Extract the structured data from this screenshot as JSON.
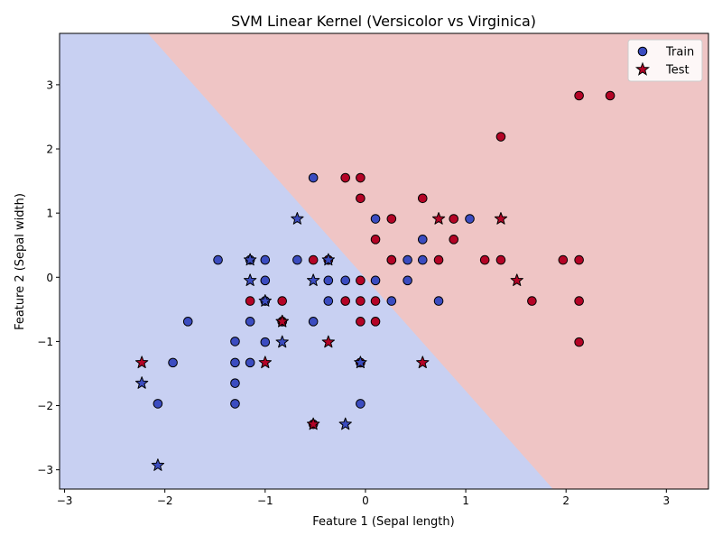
{
  "colors": {
    "region_class0": "#c8d0f2",
    "region_class1": "#efc5c5",
    "class0": "#3b4cc0",
    "class1": "#b40426",
    "edge": "#000000"
  },
  "chart_data": {
    "type": "scatter",
    "title": "SVM Linear Kernel (Versicolor vs Virginica)",
    "xlabel": "Feature 1 (Sepal length)",
    "ylabel": "Feature 2 (Sepal width)",
    "xlim": [
      -3.05,
      3.42
    ],
    "ylim": [
      -3.3,
      3.8
    ],
    "xticks": [
      -3,
      -2,
      -1,
      0,
      1,
      2,
      3
    ],
    "yticks": [
      -3,
      -2,
      -1,
      0,
      1,
      2,
      3
    ],
    "grid": false,
    "legend": {
      "placement": "top-right",
      "entries": [
        "Train",
        "Test"
      ]
    },
    "decision_boundary": {
      "from": [
        -2.17,
        3.8
      ],
      "to": [
        1.87,
        -3.3
      ]
    },
    "series": [
      {
        "name": "Train",
        "marker": "circle",
        "points": [
          [
            -2.07,
            -1.97,
            0
          ],
          [
            -1.92,
            -1.33,
            0
          ],
          [
            -1.77,
            -0.69,
            0
          ],
          [
            -1.47,
            0.27,
            0
          ],
          [
            -1.3,
            -1.0,
            0
          ],
          [
            -1.3,
            -1.33,
            0
          ],
          [
            -1.3,
            -1.65,
            0
          ],
          [
            -1.3,
            -1.97,
            0
          ],
          [
            -1.15,
            -0.69,
            0
          ],
          [
            -1.15,
            -1.33,
            0
          ],
          [
            -1.15,
            0.27,
            0
          ],
          [
            -1.0,
            0.27,
            0
          ],
          [
            -1.0,
            -0.05,
            0
          ],
          [
            -1.0,
            -0.37,
            0
          ],
          [
            -1.0,
            -1.01,
            0
          ],
          [
            -0.83,
            -0.69,
            0
          ],
          [
            -0.68,
            0.27,
            0
          ],
          [
            -0.52,
            1.55,
            0
          ],
          [
            -0.52,
            -0.69,
            0
          ],
          [
            -0.37,
            -0.05,
            0
          ],
          [
            -0.37,
            -0.37,
            0
          ],
          [
            -0.37,
            0.27,
            0
          ],
          [
            -0.2,
            -0.05,
            0
          ],
          [
            -0.05,
            -1.33,
            0
          ],
          [
            -0.05,
            -1.97,
            0
          ],
          [
            0.1,
            0.91,
            0
          ],
          [
            0.1,
            -0.05,
            0
          ],
          [
            0.26,
            -0.37,
            0
          ],
          [
            0.42,
            0.27,
            0
          ],
          [
            0.42,
            -0.05,
            0
          ],
          [
            0.57,
            0.59,
            0
          ],
          [
            0.57,
            0.27,
            0
          ],
          [
            0.73,
            -0.37,
            0
          ],
          [
            1.04,
            0.91,
            0
          ],
          [
            -1.15,
            -0.37,
            1
          ],
          [
            -0.83,
            -0.37,
            1
          ],
          [
            -0.52,
            0.27,
            1
          ],
          [
            -0.2,
            1.55,
            1
          ],
          [
            -0.05,
            1.55,
            1
          ],
          [
            -0.05,
            1.23,
            1
          ],
          [
            -0.2,
            -0.37,
            1
          ],
          [
            -0.05,
            -0.05,
            1
          ],
          [
            -0.05,
            -0.37,
            1
          ],
          [
            -0.05,
            -0.69,
            1
          ],
          [
            0.1,
            0.59,
            1
          ],
          [
            0.1,
            -0.37,
            1
          ],
          [
            0.1,
            -0.69,
            1
          ],
          [
            0.26,
            0.91,
            1
          ],
          [
            0.26,
            0.27,
            1
          ],
          [
            0.57,
            1.23,
            1
          ],
          [
            0.73,
            0.27,
            1
          ],
          [
            0.88,
            0.91,
            1
          ],
          [
            0.88,
            0.59,
            1
          ],
          [
            1.19,
            0.27,
            1
          ],
          [
            1.35,
            2.19,
            1
          ],
          [
            1.35,
            0.27,
            1
          ],
          [
            1.66,
            -0.37,
            1
          ],
          [
            1.97,
            0.27,
            1
          ],
          [
            2.13,
            2.83,
            1
          ],
          [
            2.13,
            0.27,
            1
          ],
          [
            2.13,
            -0.37,
            1
          ],
          [
            2.13,
            -1.01,
            1
          ],
          [
            2.44,
            2.83,
            1
          ],
          [
            -0.52,
            -2.29,
            1
          ],
          [
            -0.37,
            0.27,
            1
          ],
          [
            -0.83,
            -0.69,
            1
          ],
          [
            -0.05,
            -1.33,
            1
          ],
          [
            0.26,
            0.27,
            1
          ]
        ]
      },
      {
        "name": "Test",
        "marker": "star",
        "points": [
          [
            -2.23,
            -1.65,
            0
          ],
          [
            -2.07,
            -2.93,
            0
          ],
          [
            -1.15,
            0.27,
            0
          ],
          [
            -1.15,
            -0.05,
            0
          ],
          [
            -1.0,
            -0.37,
            0
          ],
          [
            -0.83,
            -0.69,
            0
          ],
          [
            -0.83,
            -1.01,
            0
          ],
          [
            -0.68,
            0.91,
            0
          ],
          [
            -0.52,
            -0.05,
            0
          ],
          [
            -0.37,
            0.27,
            0
          ],
          [
            -0.2,
            -2.29,
            0
          ],
          [
            -0.05,
            -1.33,
            0
          ],
          [
            -2.23,
            -1.33,
            1
          ],
          [
            -1.0,
            -1.33,
            1
          ],
          [
            -0.83,
            -0.69,
            1
          ],
          [
            -0.52,
            -2.29,
            1
          ],
          [
            -0.37,
            -1.01,
            1
          ],
          [
            0.57,
            -1.33,
            1
          ],
          [
            0.73,
            0.91,
            1
          ],
          [
            1.35,
            0.91,
            1
          ],
          [
            1.51,
            -0.05,
            1
          ]
        ]
      }
    ]
  }
}
